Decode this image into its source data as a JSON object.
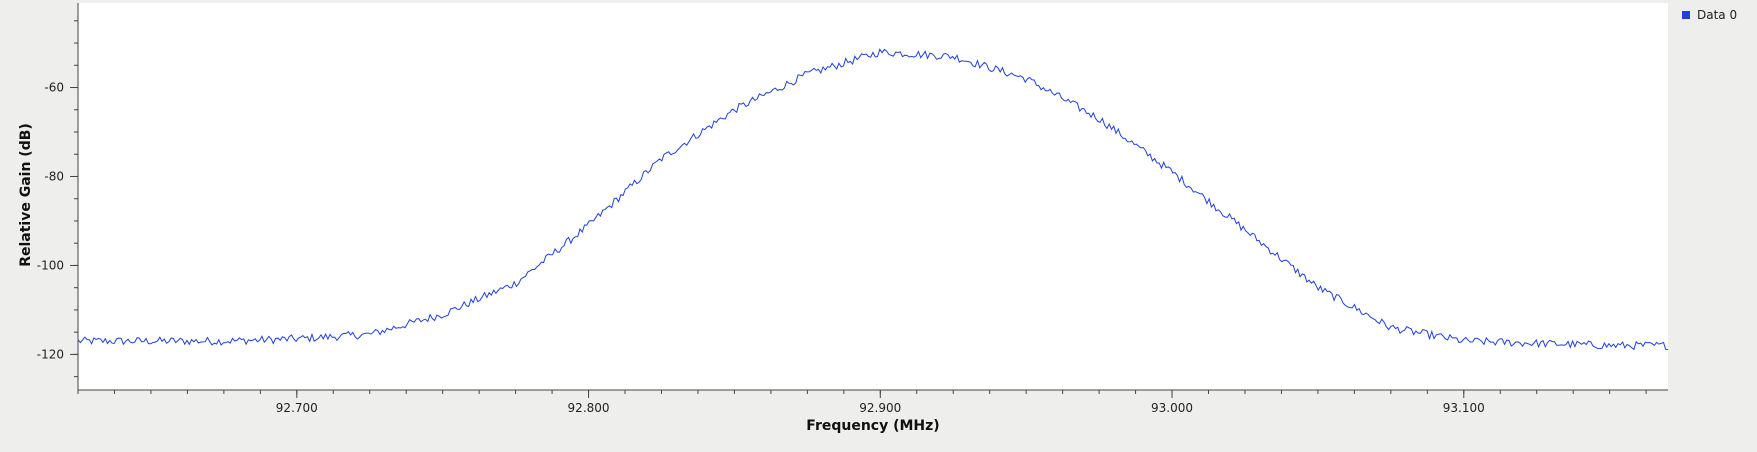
{
  "colors": {
    "background": "#eeeeec",
    "plot_background": "#ffffff",
    "axis": "#444444",
    "series": "#1f3fe0"
  },
  "chart_data": {
    "type": "line",
    "title": "",
    "xlabel": "Frequency (MHz)",
    "ylabel": "Relative Gain (dB)",
    "xlim": [
      92.625,
      93.17
    ],
    "ylim": [
      -128,
      -41
    ],
    "x_major_ticks": [
      92.7,
      92.8,
      92.9,
      93.0,
      93.1
    ],
    "x_tick_labels": [
      "92.700",
      "92.800",
      "92.900",
      "93.000",
      "93.100"
    ],
    "x_minor_step": 0.0125,
    "y_major_ticks": [
      -60,
      -80,
      -100,
      -120
    ],
    "y_tick_labels": [
      "-60",
      "-80",
      "-100",
      "-120"
    ],
    "y_minor_step": 5,
    "grid": false,
    "legend": {
      "position": "top-right",
      "entries": [
        "Data 0"
      ]
    },
    "series": [
      {
        "name": "Data 0",
        "x": [
          92.625,
          92.65,
          92.675,
          92.7,
          92.725,
          92.75,
          92.775,
          92.8,
          92.825,
          92.85,
          92.875,
          92.9,
          92.925,
          92.95,
          92.975,
          93.0,
          93.025,
          93.05,
          93.075,
          93.1,
          93.125,
          93.15,
          93.17
        ],
        "y": [
          -117,
          -117,
          -117,
          -116.5,
          -115.5,
          -111,
          -104,
          -91,
          -76,
          -65,
          -57,
          -52,
          -53,
          -58,
          -67,
          -79,
          -92,
          -105,
          -114,
          -117,
          -117.5,
          -118,
          -118
        ]
      }
    ]
  }
}
